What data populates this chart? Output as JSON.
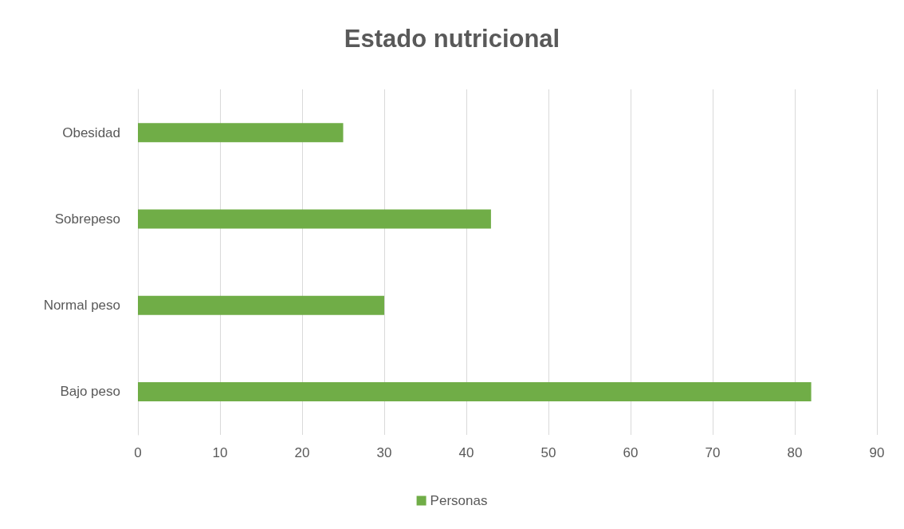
{
  "chart_data": {
    "type": "bar",
    "orientation": "horizontal",
    "title": "Estado nutricional",
    "categories": [
      "Obesidad",
      "Sobrepeso",
      "Normal peso",
      "Bajo peso"
    ],
    "series": [
      {
        "name": "Personas",
        "color": "#70ad47",
        "values": [
          25,
          43,
          30,
          82
        ]
      }
    ],
    "xlim": [
      0,
      90
    ],
    "xticks": [
      0,
      10,
      20,
      30,
      40,
      50,
      60,
      70,
      80,
      90
    ],
    "grid": "x",
    "legend": "bottom"
  }
}
